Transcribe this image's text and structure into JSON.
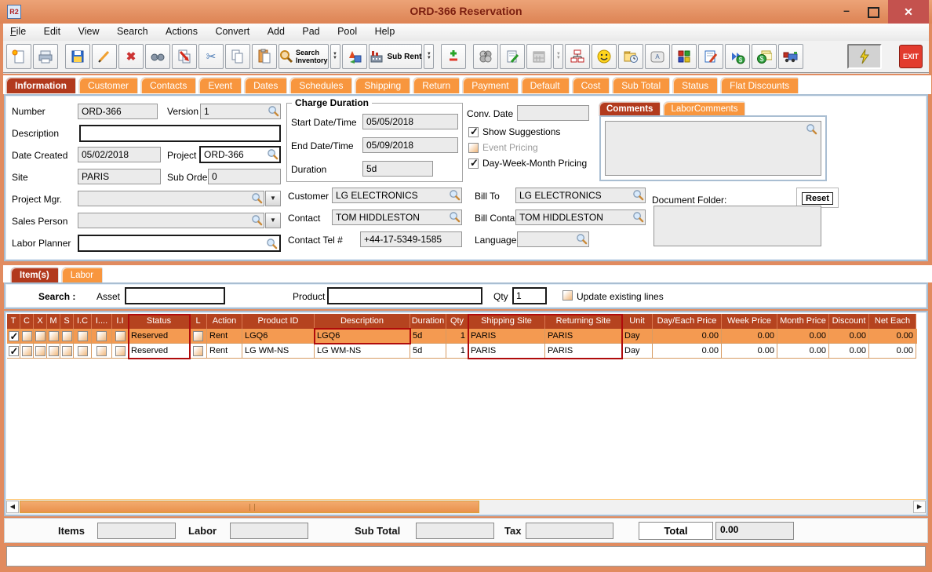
{
  "window": {
    "title": "ORD-366 Reservation",
    "app_badge": "R2"
  },
  "menu_items": [
    "File",
    "Edit",
    "View",
    "Search",
    "Actions",
    "Convert",
    "Add",
    "Pad",
    "Pool",
    "Help"
  ],
  "toolbar": {
    "search_inventory_top": "Search",
    "search_inventory_bottom": "Inventory",
    "sub_rent": "Sub Rent",
    "exit": "EXIT"
  },
  "main_tabs": [
    {
      "label": "Information",
      "active": true
    },
    {
      "label": "Customer",
      "active": false
    },
    {
      "label": "Contacts",
      "active": false
    },
    {
      "label": "Event",
      "active": false
    },
    {
      "label": "Dates",
      "active": false
    },
    {
      "label": "Schedules",
      "active": false
    },
    {
      "label": "Shipping",
      "active": false
    },
    {
      "label": "Return",
      "active": false
    },
    {
      "label": "Payment",
      "active": false
    },
    {
      "label": "Default",
      "active": false
    },
    {
      "label": "Cost",
      "active": false
    },
    {
      "label": "Sub Total",
      "active": false
    },
    {
      "label": "Status",
      "active": false
    },
    {
      "label": "Flat Discounts",
      "active": false
    }
  ],
  "info": {
    "labels": {
      "number": "Number",
      "version": "Version",
      "description": "Description",
      "date_created": "Date Created",
      "project": "Project",
      "site": "Site",
      "sub_orders": "Sub Orders",
      "project_mgr": "Project Mgr.",
      "sales_person": "Sales Person",
      "labor_planner": "Labor Planner",
      "charge_duration": "Charge Duration",
      "start": "Start Date/Time",
      "end": "End Date/Time",
      "duration": "Duration",
      "conv_date": "Conv. Date",
      "show_suggestions": "Show Suggestions",
      "event_pricing": "Event Pricing",
      "dwm_pricing": "Day-Week-Month Pricing",
      "customer": "Customer",
      "bill_to": "Bill To",
      "contact": "Contact",
      "bill_contact": "Bill Contact",
      "contact_tel": "Contact Tel #",
      "language": "Language",
      "document_folder": "Document Folder:",
      "reset": "Reset"
    },
    "values": {
      "number": "ORD-366",
      "version": "1",
      "description": "",
      "date_created": "05/02/2018",
      "project": "ORD-366",
      "site": "PARIS",
      "sub_orders": "0",
      "project_mgr": "",
      "sales_person": "",
      "labor_planner": "",
      "start": "05/05/2018",
      "end": "05/09/2018",
      "duration": "5d",
      "conv_date": "",
      "customer": "LG ELECTRONICS",
      "bill_to": "LG ELECTRONICS",
      "contact": "TOM HIDDLESTON",
      "bill_contact": "TOM HIDDLESTON",
      "contact_tel": "+44-17-5349-1585",
      "language": "",
      "comments": "",
      "document_folder": ""
    },
    "checkboxes": {
      "show_suggestions": true,
      "event_pricing": false,
      "dwm_pricing": true
    },
    "comment_tabs": [
      {
        "label": "Comments",
        "active": true
      },
      {
        "label": "LaborComments",
        "active": false
      }
    ]
  },
  "items_section": {
    "tabs": [
      {
        "label": "Item(s)",
        "active": true
      },
      {
        "label": "Labor",
        "active": false
      }
    ],
    "search": {
      "label": "Search :",
      "asset_label": "Asset",
      "asset_value": "",
      "product_label": "Product",
      "product_value": "",
      "qty_label": "Qty",
      "qty_value": "1",
      "update_label": "Update existing lines",
      "update_checked": false
    }
  },
  "table": {
    "columns": [
      "T",
      "C",
      "X",
      "M",
      "S",
      "I.C",
      "I....",
      "I.I",
      "Status",
      "L",
      "Action",
      "Product ID",
      "Description",
      "Duration",
      "Qty",
      "Shipping Site",
      "Returning Site",
      "Unit",
      "Day/Each Price",
      "Week Price",
      "Month Price",
      "Discount",
      "Net Each"
    ],
    "rows": [
      {
        "t": true,
        "c": false,
        "x": false,
        "m": false,
        "s": false,
        "ic": false,
        "idot": false,
        "ii": false,
        "status": "Reserved",
        "l": false,
        "action": "Rent",
        "product_id": "LGQ6",
        "description": "LGQ6",
        "duration": "5d",
        "qty": "1",
        "shipping_site": "PARIS",
        "returning_site": "PARIS",
        "unit": "Day",
        "day_each_price": "0.00",
        "week_price": "0.00",
        "month_price": "0.00",
        "discount": "0.00",
        "net_each": "0.00",
        "selected": true
      },
      {
        "t": true,
        "c": false,
        "x": false,
        "m": false,
        "s": false,
        "ic": false,
        "idot": false,
        "ii": false,
        "status": "Reserved",
        "l": false,
        "action": "Rent",
        "product_id": "LG WM-NS",
        "description": "LG WM-NS",
        "duration": "5d",
        "qty": "1",
        "shipping_site": "PARIS",
        "returning_site": "PARIS",
        "unit": "Day",
        "day_each_price": "0.00",
        "week_price": "0.00",
        "month_price": "0.00",
        "discount": "0.00",
        "net_each": "0.00",
        "selected": false
      }
    ]
  },
  "annotations": {
    "highlighted_columns": [
      "Status",
      "Shipping Site",
      "Returning Site"
    ],
    "highlighted_cell": "Description of row 1",
    "highlight_color": "#b00b0b"
  },
  "totals": {
    "items_label": "Items",
    "labor_label": "Labor",
    "sub_total_label": "Sub Total",
    "tax_label": "Tax",
    "total_label": "Total",
    "items": "",
    "labor": "",
    "sub_total": "",
    "tax": "",
    "total": "0.00"
  },
  "colors": {
    "titlebar": "#e18b5f",
    "active_tab": "#b23a1d",
    "inactive_tab": "#f8963e",
    "table_header": "#b5431f",
    "selected_row": "#f49a51",
    "highlight_border": "#b00b0b",
    "close_button": "#c4524e"
  }
}
